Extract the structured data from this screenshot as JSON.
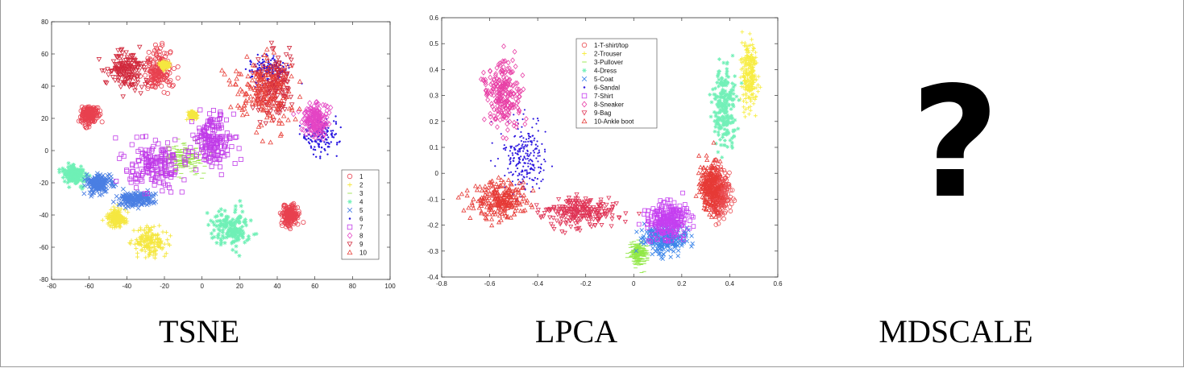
{
  "panels": [
    {
      "caption": "TSNE"
    },
    {
      "caption": "LPCA"
    },
    {
      "caption": "MDSCALE",
      "placeholder_glyph": "?"
    }
  ],
  "chart_data": [
    {
      "type": "scatter",
      "title": "",
      "xlabel": "",
      "ylabel": "",
      "xlim": [
        -80,
        100
      ],
      "ylim": [
        -80,
        80
      ],
      "xticks": [
        -80,
        -60,
        -40,
        -20,
        0,
        20,
        40,
        60,
        80,
        100
      ],
      "yticks": [
        -80,
        -60,
        -40,
        -20,
        0,
        20,
        40,
        60,
        80
      ],
      "grid": false,
      "legend_position": "bottom-right",
      "series": [
        {
          "name": "1",
          "color": "#e8414f",
          "marker": "circle",
          "clusters": [
            [
              -60,
              22,
              4,
              5
            ],
            [
              -23,
              50,
              6,
              12
            ],
            [
              47,
              -40,
              4,
              6
            ]
          ]
        },
        {
          "name": "2",
          "color": "#f5e740",
          "marker": "plus",
          "clusters": [
            [
              -28,
              -57,
              8,
              8
            ],
            [
              -45,
              -42,
              5,
              5
            ],
            [
              -20,
              53,
              2,
              2
            ],
            [
              -5,
              22,
              2,
              2
            ]
          ]
        },
        {
          "name": "3",
          "color": "#9be34a",
          "marker": "dash",
          "clusters": [
            [
              -10,
              -5,
              10,
              8
            ]
          ]
        },
        {
          "name": "4",
          "color": "#6ff0b6",
          "marker": "asterisk",
          "clusters": [
            [
              -68,
              -15,
              6,
              5
            ],
            [
              15,
              -48,
              10,
              10
            ]
          ]
        },
        {
          "name": "5",
          "color": "#4a7fe3",
          "marker": "x",
          "clusters": [
            [
              -55,
              -20,
              6,
              5
            ],
            [
              -35,
              -30,
              8,
              4
            ]
          ]
        },
        {
          "name": "6",
          "color": "#2a18e0",
          "marker": "dot",
          "clusters": [
            [
              35,
              50,
              10,
              8
            ],
            [
              63,
              10,
              8,
              10
            ]
          ]
        },
        {
          "name": "7",
          "color": "#c03be8",
          "marker": "square",
          "clusters": [
            [
              -25,
              -10,
              15,
              14
            ],
            [
              5,
              5,
              10,
              15
            ]
          ]
        },
        {
          "name": "8",
          "color": "#e445c4",
          "marker": "diamond",
          "clusters": [
            [
              60,
              20,
              6,
              9
            ]
          ]
        },
        {
          "name": "9",
          "color": "#d1293c",
          "marker": "triangle-down",
          "clusters": [
            [
              -40,
              50,
              8,
              10
            ],
            [
              38,
              40,
              9,
              18
            ]
          ]
        },
        {
          "name": "10",
          "color": "#e8413a",
          "marker": "triangle-up",
          "clusters": [
            [
              33,
              35,
              15,
              20
            ]
          ]
        }
      ]
    },
    {
      "type": "scatter",
      "title": "",
      "xlabel": "",
      "ylabel": "",
      "xlim": [
        -0.8,
        0.6
      ],
      "ylim": [
        -0.4,
        0.6
      ],
      "xticks": [
        -0.8,
        -0.6,
        -0.4,
        -0.2,
        0,
        0.2,
        0.4,
        0.6
      ],
      "yticks": [
        -0.4,
        -0.3,
        -0.2,
        -0.1,
        0,
        0.1,
        0.2,
        0.3,
        0.4,
        0.5,
        0.6
      ],
      "grid": false,
      "legend_position": "top-center",
      "series": [
        {
          "name": "1-T-shirt/top",
          "color": "#ea4a4f",
          "marker": "circle",
          "clusters": [
            [
              0.36,
              -0.08,
              0.04,
              0.09
            ]
          ]
        },
        {
          "name": "2-Trouser",
          "color": "#f7ed44",
          "marker": "plus",
          "clusters": [
            [
              0.48,
              0.39,
              0.03,
              0.12
            ]
          ]
        },
        {
          "name": "3-Pullover",
          "color": "#92e847",
          "marker": "dash",
          "clusters": [
            [
              0.02,
              -0.31,
              0.03,
              0.04
            ]
          ]
        },
        {
          "name": "4-Dress",
          "color": "#73f0b8",
          "marker": "asterisk",
          "clusters": [
            [
              0.38,
              0.25,
              0.04,
              0.13
            ]
          ]
        },
        {
          "name": "5-Coat",
          "color": "#3d86ea",
          "marker": "x",
          "clusters": [
            [
              0.13,
              -0.25,
              0.08,
              0.05
            ]
          ]
        },
        {
          "name": "6-Sandal",
          "color": "#2d18df",
          "marker": "dot",
          "clusters": [
            [
              -0.46,
              0.07,
              0.08,
              0.12
            ]
          ]
        },
        {
          "name": "7-Shirt",
          "color": "#c53ff0",
          "marker": "square",
          "clusters": [
            [
              0.14,
              -0.18,
              0.08,
              0.06
            ]
          ]
        },
        {
          "name": "8-Sneaker",
          "color": "#e840a6",
          "marker": "diamond",
          "clusters": [
            [
              -0.54,
              0.31,
              0.06,
              0.12
            ]
          ]
        },
        {
          "name": "9-Bag",
          "color": "#df3355",
          "marker": "triangle-down",
          "clusters": [
            [
              -0.22,
              -0.15,
              0.14,
              0.05
            ]
          ]
        },
        {
          "name": "10-Ankle boot",
          "color": "#e63a36",
          "marker": "triangle-up",
          "clusters": [
            [
              -0.55,
              -0.1,
              0.1,
              0.07
            ],
            [
              0.32,
              -0.05,
              0.04,
              0.09
            ]
          ]
        }
      ]
    }
  ]
}
